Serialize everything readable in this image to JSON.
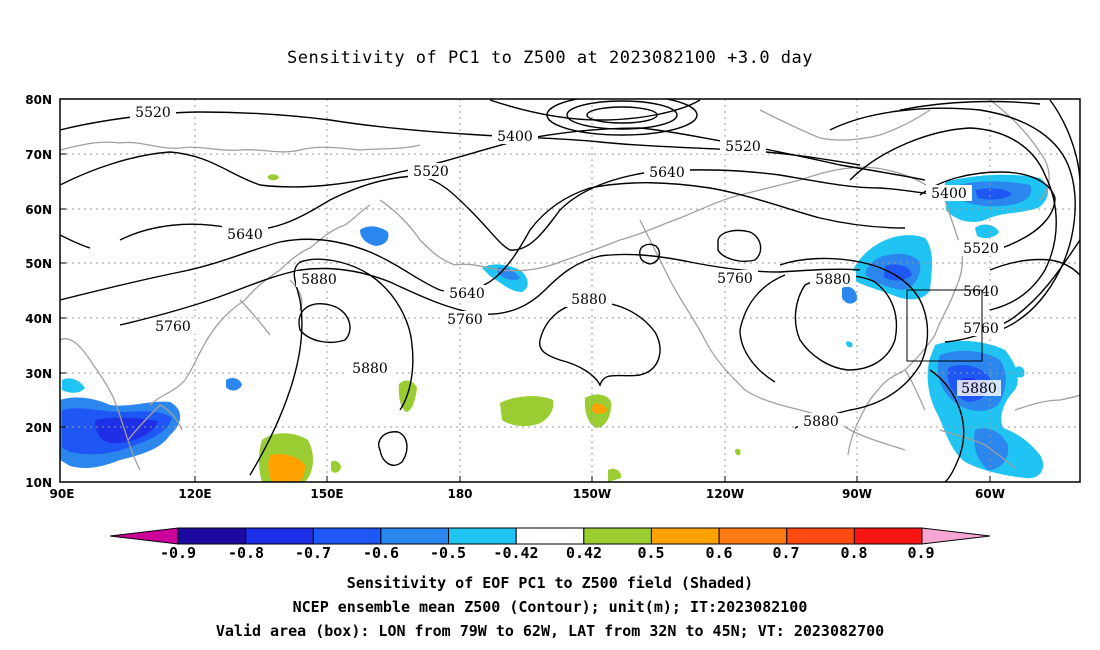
{
  "title": "Sensitivity of PC1 to Z500 at 2023082100 +3.0 day",
  "lat_ticks": [
    "80N",
    "70N",
    "60N",
    "50N",
    "40N",
    "30N",
    "20N",
    "10N"
  ],
  "lon_ticks": [
    "90E",
    "120E",
    "150E",
    "180",
    "150W",
    "120W",
    "90W",
    "60W"
  ],
  "contours": [
    {
      "label": "5520"
    },
    {
      "label": "5400"
    },
    {
      "label": "5520"
    },
    {
      "label": "5640"
    },
    {
      "label": "5520"
    },
    {
      "label": "5400"
    },
    {
      "label": "5640"
    },
    {
      "label": "5520"
    },
    {
      "label": "5880"
    },
    {
      "label": "5640"
    },
    {
      "label": "5880"
    },
    {
      "label": "5760"
    },
    {
      "label": "5760"
    },
    {
      "label": "5760"
    },
    {
      "label": "5640"
    },
    {
      "label": "5880"
    },
    {
      "label": "5760"
    },
    {
      "label": "5880"
    },
    {
      "label": "5880"
    }
  ],
  "colorbar": {
    "labels": [
      "-0.9",
      "-0.8",
      "-0.7",
      "-0.6",
      "-0.5",
      "-0.42",
      "0.42",
      "0.5",
      "0.6",
      "0.7",
      "0.8",
      "0.9"
    ],
    "colors": [
      "#1a0aa0",
      "#1f2fe8",
      "#1f57f5",
      "#2b86ee",
      "#20c4f3",
      "#ffffff",
      "#9acd32",
      "#ffa200",
      "#ff7a10",
      "#ff4b12",
      "#ff1414"
    ],
    "left_arrow_color": "#cc0099",
    "right_arrow_color": "#f7a6d3"
  },
  "caption_lines": [
    "Sensitivity of EOF PC1 to Z500 field (Shaded)",
    "NCEP ensemble mean Z500 (Contour); unit(m); IT:2023082100",
    "Valid area (box): LON from 79W to 62W, LAT from 32N to 45N; VT: 2023082700"
  ],
  "valid_box": {
    "lon_min": -79,
    "lon_max": -62,
    "lat_min": 32,
    "lat_max": 45
  }
}
